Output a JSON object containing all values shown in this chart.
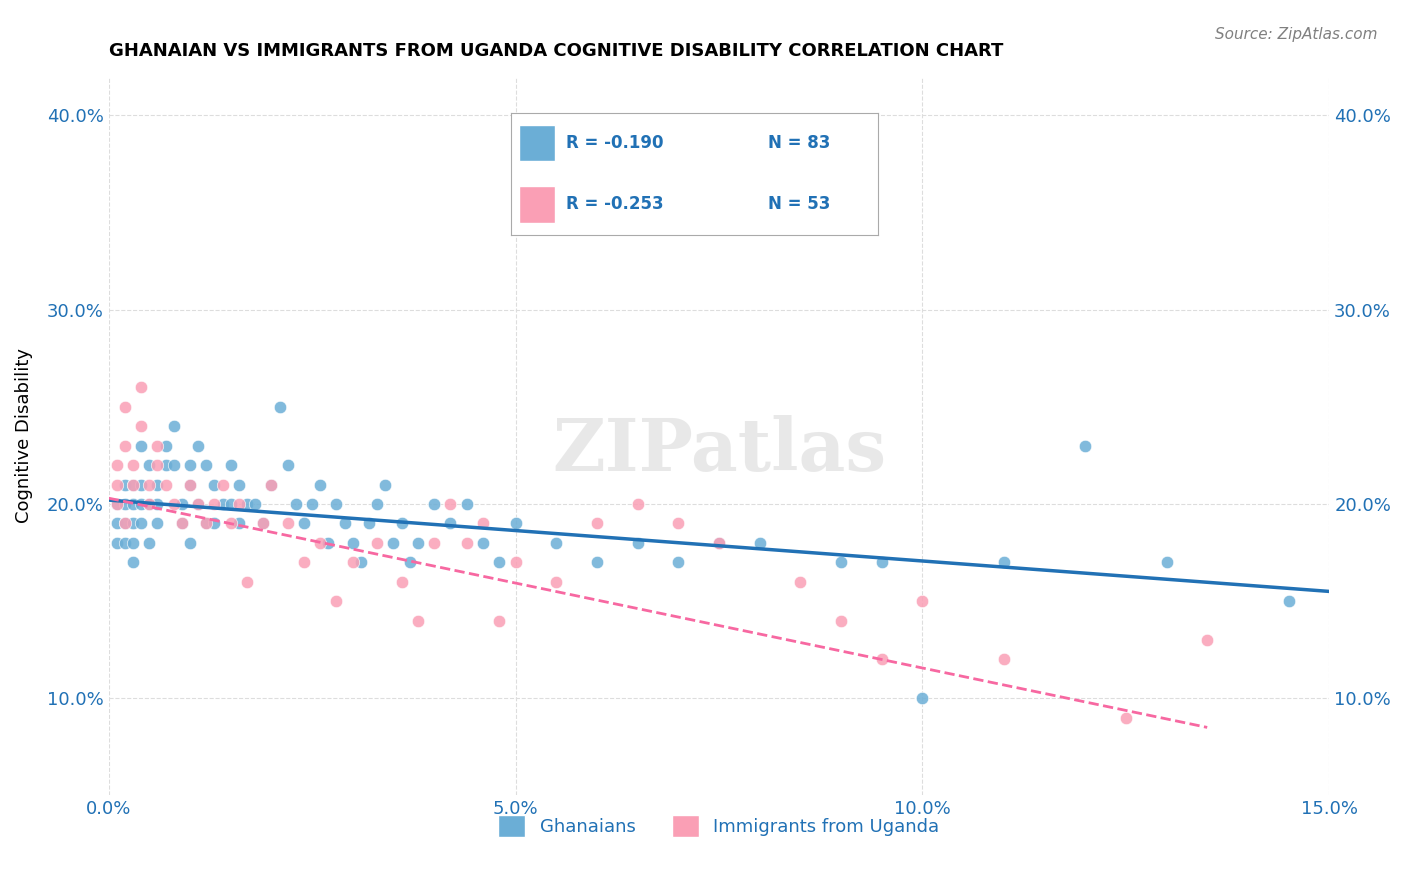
{
  "title": "GHANAIAN VS IMMIGRANTS FROM UGANDA COGNITIVE DISABILITY CORRELATION CHART",
  "source": "Source: ZipAtlas.com",
  "xlabel_bottom": "",
  "ylabel": "Cognitive Disability",
  "watermark": "ZIPatlas",
  "xmin": 0.0,
  "xmax": 0.15,
  "ymin": 0.05,
  "ymax": 0.42,
  "yticks": [
    0.1,
    0.2,
    0.3,
    0.4
  ],
  "ytick_labels": [
    "10.0%",
    "20.0%",
    "30.0%",
    "40.0%"
  ],
  "xticks": [
    0.0,
    0.05,
    0.1,
    0.15
  ],
  "xtick_labels": [
    "0.0%",
    "5.0%",
    "10.0%",
    "15.0%"
  ],
  "legend_r1": "R = -0.190",
  "legend_n1": "N = 83",
  "legend_r2": "R = -0.253",
  "legend_n2": "N = 53",
  "color_blue": "#6baed6",
  "color_pink": "#fa9fb5",
  "color_blue_line": "#2171b5",
  "color_pink_line": "#f768a1",
  "color_axis_label": "#2171b5",
  "color_tick_label": "#2171b5",
  "ghanaian_x": [
    0.001,
    0.001,
    0.001,
    0.002,
    0.002,
    0.002,
    0.002,
    0.003,
    0.003,
    0.003,
    0.003,
    0.003,
    0.004,
    0.004,
    0.004,
    0.004,
    0.005,
    0.005,
    0.005,
    0.006,
    0.006,
    0.006,
    0.007,
    0.007,
    0.008,
    0.008,
    0.009,
    0.009,
    0.01,
    0.01,
    0.01,
    0.011,
    0.011,
    0.012,
    0.012,
    0.013,
    0.013,
    0.014,
    0.015,
    0.015,
    0.016,
    0.016,
    0.017,
    0.018,
    0.019,
    0.02,
    0.021,
    0.022,
    0.023,
    0.024,
    0.025,
    0.026,
    0.027,
    0.028,
    0.029,
    0.03,
    0.031,
    0.032,
    0.033,
    0.034,
    0.035,
    0.036,
    0.037,
    0.038,
    0.04,
    0.042,
    0.044,
    0.046,
    0.048,
    0.05,
    0.055,
    0.06,
    0.065,
    0.07,
    0.075,
    0.08,
    0.09,
    0.095,
    0.1,
    0.11,
    0.12,
    0.13,
    0.145
  ],
  "ghanaian_y": [
    0.2,
    0.19,
    0.18,
    0.21,
    0.2,
    0.19,
    0.18,
    0.21,
    0.2,
    0.19,
    0.18,
    0.17,
    0.21,
    0.2,
    0.19,
    0.23,
    0.22,
    0.2,
    0.18,
    0.21,
    0.2,
    0.19,
    0.23,
    0.22,
    0.24,
    0.22,
    0.2,
    0.19,
    0.22,
    0.21,
    0.18,
    0.23,
    0.2,
    0.22,
    0.19,
    0.21,
    0.19,
    0.2,
    0.22,
    0.2,
    0.21,
    0.19,
    0.2,
    0.2,
    0.19,
    0.21,
    0.25,
    0.22,
    0.2,
    0.19,
    0.2,
    0.21,
    0.18,
    0.2,
    0.19,
    0.18,
    0.17,
    0.19,
    0.2,
    0.21,
    0.18,
    0.19,
    0.17,
    0.18,
    0.2,
    0.19,
    0.2,
    0.18,
    0.17,
    0.19,
    0.18,
    0.17,
    0.18,
    0.17,
    0.18,
    0.18,
    0.17,
    0.17,
    0.1,
    0.17,
    0.23,
    0.17,
    0.15
  ],
  "uganda_x": [
    0.001,
    0.001,
    0.001,
    0.002,
    0.002,
    0.002,
    0.003,
    0.003,
    0.004,
    0.004,
    0.005,
    0.005,
    0.006,
    0.006,
    0.007,
    0.008,
    0.009,
    0.01,
    0.011,
    0.012,
    0.013,
    0.014,
    0.015,
    0.016,
    0.017,
    0.019,
    0.02,
    0.022,
    0.024,
    0.026,
    0.028,
    0.03,
    0.033,
    0.036,
    0.038,
    0.04,
    0.042,
    0.044,
    0.046,
    0.048,
    0.05,
    0.055,
    0.06,
    0.065,
    0.07,
    0.075,
    0.085,
    0.09,
    0.095,
    0.1,
    0.11,
    0.125,
    0.135
  ],
  "uganda_y": [
    0.22,
    0.21,
    0.2,
    0.25,
    0.23,
    0.19,
    0.22,
    0.21,
    0.26,
    0.24,
    0.21,
    0.2,
    0.23,
    0.22,
    0.21,
    0.2,
    0.19,
    0.21,
    0.2,
    0.19,
    0.2,
    0.21,
    0.19,
    0.2,
    0.16,
    0.19,
    0.21,
    0.19,
    0.17,
    0.18,
    0.15,
    0.17,
    0.18,
    0.16,
    0.14,
    0.18,
    0.2,
    0.18,
    0.19,
    0.14,
    0.17,
    0.16,
    0.19,
    0.2,
    0.19,
    0.18,
    0.16,
    0.14,
    0.12,
    0.15,
    0.12,
    0.09,
    0.13
  ],
  "blue_line_x": [
    0.0,
    0.15
  ],
  "blue_line_y": [
    0.202,
    0.155
  ],
  "pink_line_x": [
    0.0,
    0.135
  ],
  "pink_line_y": [
    0.203,
    0.085
  ],
  "legend_label1": "Ghanaians",
  "legend_label2": "Immigrants from Uganda",
  "background_color": "#ffffff",
  "grid_color": "#dddddd"
}
